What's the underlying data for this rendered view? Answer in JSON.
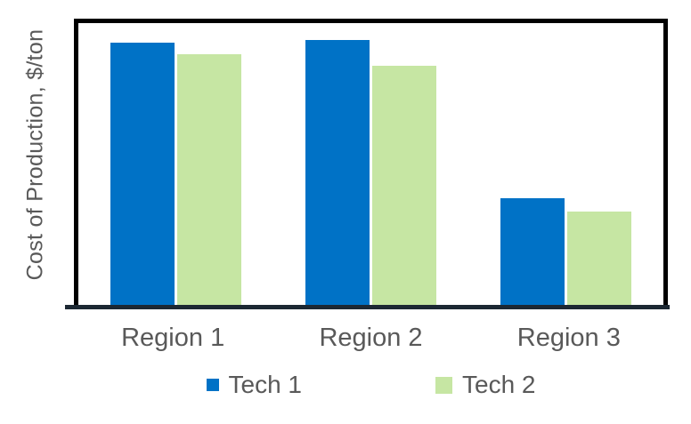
{
  "figure": {
    "background": "#FFFFFF"
  },
  "chart_data": {
    "type": "bar",
    "title": "",
    "xlabel": "",
    "ylabel": "Cost of Production, $/ton",
    "categories": [
      "Region 1",
      "Region 2",
      "Region 3"
    ],
    "series": [
      {
        "name": "Tech 1",
        "color": "#0072C6",
        "values": [
          93,
          94,
          38
        ]
      },
      {
        "name": "Tech 2",
        "color": "#C6E6A3",
        "values": [
          89,
          85,
          33
        ]
      }
    ],
    "ylim": [
      0,
      100
    ],
    "y_tick_labels_visible": false,
    "x_tick_labels_visible": true,
    "grid": false,
    "legend_position": "bottom",
    "plot_border_color": "#000000",
    "axis_line_color": "#1C2833",
    "text_color": "#595959"
  }
}
